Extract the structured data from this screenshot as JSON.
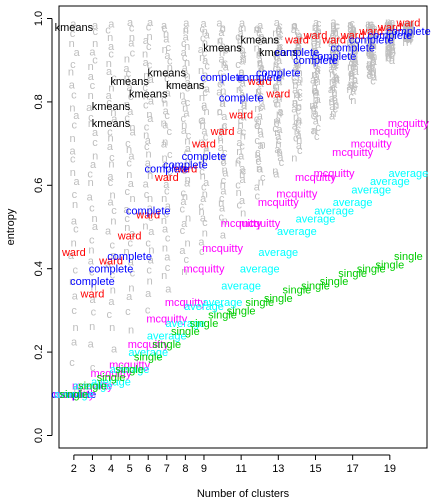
{
  "chart_data": {
    "type": "scatter",
    "title": "",
    "xlabel": "Number of clusters",
    "ylabel": "entropy",
    "xlim": [
      1.2,
      21.0
    ],
    "ylim": [
      -0.03,
      1.03
    ],
    "x_ticks": [
      2,
      3,
      4,
      5,
      6,
      7,
      8,
      9,
      11,
      13,
      15,
      17,
      19
    ],
    "x_tick_labels": [
      "2",
      "3",
      "4",
      "5",
      "6",
      "7",
      "8",
      "9",
      "11",
      "13",
      "15",
      "17",
      "19"
    ],
    "y_ticks": [
      0.0,
      0.2,
      0.4,
      0.6,
      0.8,
      1.0
    ],
    "y_tick_labels": [
      "0.0",
      "0.2",
      "0.4",
      "0.6",
      "0.8",
      "1.0"
    ],
    "grid": false,
    "legend": "none",
    "point_marker": "text label of method name",
    "background_markers": {
      "description": "grey random-partition glyphs",
      "glyphs": [
        "c",
        "a",
        "n"
      ],
      "color": "#bebebe"
    },
    "series": [
      {
        "name": "kmeans",
        "color": "#000000",
        "x": [
          2,
          4,
          4,
          5,
          6,
          7,
          8,
          10,
          12,
          13
        ],
        "y": [
          0.98,
          0.79,
          0.75,
          0.85,
          0.82,
          0.87,
          0.84,
          0.93,
          0.95,
          0.92
        ]
      },
      {
        "name": "ward",
        "color": "#ff0000",
        "x": [
          2,
          3,
          4,
          5,
          6,
          7,
          8,
          9,
          10,
          11,
          12,
          13,
          14,
          15,
          16,
          17,
          18,
          19,
          20
        ],
        "y": [
          0.44,
          0.34,
          0.42,
          0.48,
          0.53,
          0.62,
          0.64,
          0.7,
          0.73,
          0.77,
          0.85,
          0.82,
          0.95,
          0.96,
          0.95,
          0.96,
          0.97,
          0.98,
          0.99
        ]
      },
      {
        "name": "complete",
        "color": "#0000ff",
        "x": [
          2,
          3,
          4,
          5,
          6,
          7,
          8,
          9,
          10,
          11,
          12,
          13,
          14,
          15,
          16,
          17,
          18,
          19,
          20
        ],
        "y": [
          0.1,
          0.37,
          0.4,
          0.43,
          0.54,
          0.64,
          0.65,
          0.67,
          0.86,
          0.81,
          0.86,
          0.87,
          0.92,
          0.9,
          0.91,
          0.93,
          0.95,
          0.96,
          0.97
        ]
      },
      {
        "name": "mcquitty",
        "color": "#ff00ff",
        "x": [
          2,
          3,
          4,
          5,
          6,
          7,
          8,
          9,
          10,
          11,
          12,
          13,
          14,
          15,
          16,
          17,
          18,
          19,
          20
        ],
        "y": [
          0.1,
          0.12,
          0.15,
          0.17,
          0.22,
          0.28,
          0.32,
          0.4,
          0.45,
          0.51,
          0.51,
          0.56,
          0.58,
          0.62,
          0.63,
          0.68,
          0.7,
          0.73,
          0.75
        ]
      },
      {
        "name": "average",
        "color": "#00ffff",
        "x": [
          2,
          3,
          4,
          5,
          6,
          7,
          8,
          9,
          10,
          11,
          12,
          13,
          14,
          15,
          16,
          17,
          18,
          19,
          20
        ],
        "y": [
          0.1,
          0.12,
          0.13,
          0.16,
          0.2,
          0.24,
          0.27,
          0.31,
          0.32,
          0.36,
          0.4,
          0.44,
          0.49,
          0.52,
          0.54,
          0.56,
          0.59,
          0.61,
          0.63
        ]
      },
      {
        "name": "single",
        "color": "#00cd00",
        "x": [
          2,
          3,
          4,
          5,
          6,
          7,
          8,
          9,
          10,
          11,
          12,
          13,
          14,
          15,
          16,
          17,
          18,
          19,
          20
        ],
        "y": [
          0.1,
          0.12,
          0.14,
          0.16,
          0.19,
          0.22,
          0.25,
          0.27,
          0.29,
          0.3,
          0.32,
          0.33,
          0.35,
          0.36,
          0.37,
          0.39,
          0.4,
          0.41,
          0.43
        ]
      }
    ]
  }
}
